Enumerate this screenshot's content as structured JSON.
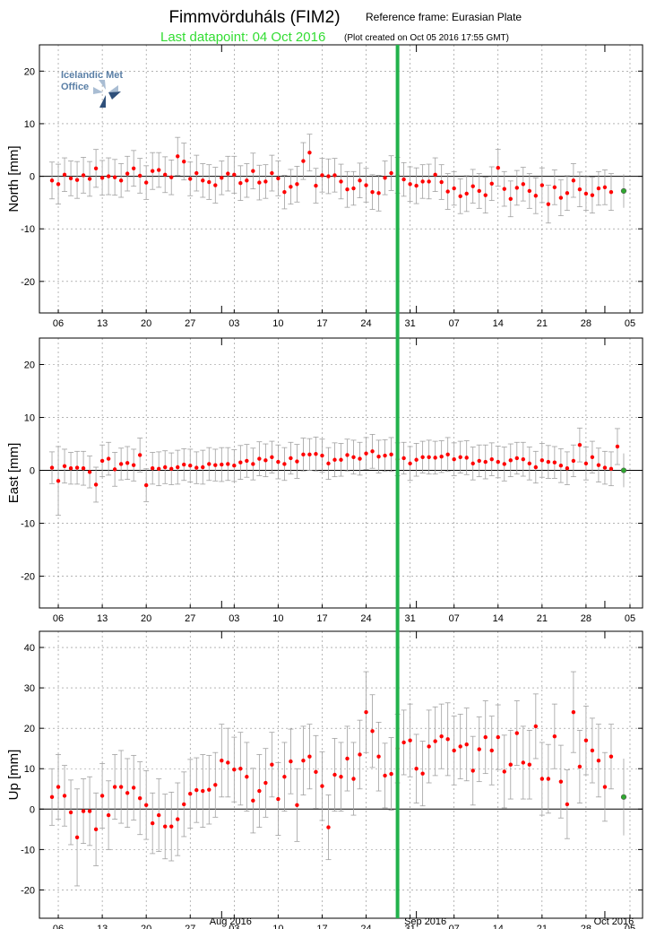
{
  "header": {
    "title": "Fimmvörduháls (FIM2)",
    "reference_frame": "Reference frame: Eurasian Plate",
    "last_datapoint": "Last datapoint: 04 Oct 2016",
    "plot_created": "(Plot created on Oct 05 2016 17:55 GMT)"
  },
  "logo": {
    "line1": "Icelandic Met",
    "line2": "Office"
  },
  "colors": {
    "point": "#ff0000",
    "error_bar": "#a0a0a0",
    "last_point": "#2fa82f",
    "marker_line": "#22b24c",
    "last_datapoint_text": "#33dd33",
    "logo_text": "#5a7fa6",
    "grid": "#888888"
  },
  "chart_data": {
    "type": "scatter",
    "x_unit": "date",
    "x_range": [
      "2016-07-03",
      "2016-10-07"
    ],
    "x_ticks": [
      {
        "date": "2016-07-06",
        "label": "06"
      },
      {
        "date": "2016-07-13",
        "label": "13"
      },
      {
        "date": "2016-07-20",
        "label": "20"
      },
      {
        "date": "2016-07-27",
        "label": "27"
      },
      {
        "date": "2016-08-03",
        "label": "03"
      },
      {
        "date": "2016-08-10",
        "label": "10"
      },
      {
        "date": "2016-08-17",
        "label": "17"
      },
      {
        "date": "2016-08-24",
        "label": "24"
      },
      {
        "date": "2016-08-31",
        "label": "31"
      },
      {
        "date": "2016-09-07",
        "label": "07"
      },
      {
        "date": "2016-09-14",
        "label": "14"
      },
      {
        "date": "2016-09-21",
        "label": "21"
      },
      {
        "date": "2016-09-28",
        "label": "28"
      },
      {
        "date": "2016-10-05",
        "label": "05"
      }
    ],
    "month_labels": [
      {
        "date": "2016-08-01",
        "label": "Aug 2016"
      },
      {
        "date": "2016-09-01",
        "label": "Sep 2016"
      },
      {
        "date": "2016-10-01",
        "label": "Oct 2016"
      }
    ],
    "marker_line_date": "2016-08-29",
    "start_date": "2016-07-05",
    "grid": true,
    "panels": [
      {
        "name": "north",
        "ylabel": "North [mm]",
        "ylim": [
          -26,
          25
        ],
        "yticks": [
          -20,
          -10,
          0,
          10,
          20
        ],
        "values": [
          -0.8,
          -1.5,
          0.3,
          -0.4,
          -0.7,
          0.2,
          -0.5,
          1.5,
          -0.3,
          0,
          -0.2,
          -0.8,
          0.5,
          1.5,
          0.1,
          -1.2,
          1,
          1.2,
          0.3,
          -0.2,
          3.8,
          2.8,
          -0.5,
          0.6,
          -0.8,
          -1.1,
          -1.7,
          -0.3,
          0.5,
          0.3,
          -1.3,
          -0.8,
          1,
          -1.2,
          -1,
          0.6,
          -0.4,
          -3,
          -2,
          -1.5,
          2.9,
          4.5,
          -1.8,
          0.2,
          0,
          0.2,
          -1,
          -2.5,
          -2.3,
          -0.8,
          -1.7,
          -3,
          -3.2,
          -0.3,
          0.6,
          0.2,
          -0.6,
          -1.5,
          -1.8,
          -1,
          -1,
          0.3,
          -1.1,
          -2.9,
          -2.3,
          -3.8,
          -3.3,
          -1.9,
          -2.8,
          -3.6,
          -1.4,
          1.6,
          -2.4,
          -4.3,
          -2.2,
          -1.5,
          -2.8,
          -3.7,
          -1.7,
          -5.3,
          -2.1,
          -4.1,
          -3.2,
          -0.8,
          -2.5,
          -3.3,
          -3.6,
          -2.3,
          -2.1,
          -3
        ],
        "errors": [
          3.5,
          3.8,
          3.2,
          3.3,
          3.5,
          3.4,
          3.3,
          3.6,
          3.3,
          3.5,
          3.4,
          3.2,
          3.3,
          3.4,
          3.3,
          3.2,
          3.5,
          3.3,
          3.4,
          3.3,
          3.6,
          3.5,
          3.2,
          3.4,
          3.2,
          3.3,
          3.4,
          3.2,
          3.3,
          3.5,
          3.3,
          3.2,
          3.4,
          3.3,
          3.2,
          3.4,
          3.3,
          3.2,
          3.3,
          3.4,
          3.5,
          3.5,
          3.3,
          3.2,
          3.3,
          3.2,
          3.3,
          3.4,
          3.2,
          3.3,
          3.2,
          3.3,
          3.4,
          3.2,
          3.3,
          3.4,
          3.2,
          3.3,
          3.4,
          3.2,
          3.3,
          3.2,
          3.3,
          3.4,
          3.2,
          3.3,
          3.4,
          3.2,
          3.3,
          3.4,
          3.2,
          3.5,
          3.3,
          3.4,
          3.3,
          3.2,
          3.3,
          3.4,
          3.3,
          3.6,
          3.3,
          3.4,
          3.3,
          3.2,
          3.3,
          3.2,
          3.4,
          3.2,
          3.3,
          3.5
        ],
        "last_value": -2.8
      },
      {
        "name": "east",
        "ylabel": "East [mm]",
        "ylim": [
          -26,
          25
        ],
        "yticks": [
          -20,
          -10,
          0,
          10,
          20
        ],
        "values": [
          0.5,
          -2,
          0.8,
          0.4,
          0.5,
          0.4,
          -0.3,
          -2.7,
          1.8,
          2.2,
          0.2,
          1.2,
          1.4,
          1,
          2.9,
          -2.8,
          0.4,
          0.3,
          0.6,
          0.3,
          0.6,
          1.1,
          0.9,
          0.5,
          0.6,
          1.2,
          1,
          1.1,
          1.2,
          0.9,
          1.5,
          1.8,
          1.2,
          2.2,
          1.9,
          2.5,
          1.6,
          1.2,
          2.3,
          1.7,
          3,
          3,
          3.1,
          2.8,
          1.3,
          2,
          2,
          2.9,
          2.5,
          2.2,
          3.2,
          3.6,
          2.6,
          2.8,
          3,
          2.1,
          2.3,
          1.3,
          2,
          2.5,
          2.5,
          2.4,
          2.6,
          3,
          2.1,
          2.5,
          2.4,
          1.3,
          1.8,
          1.6,
          2.1,
          1.6,
          1.2,
          1.9,
          2.3,
          2.1,
          1.3,
          0.6,
          1.9,
          1.6,
          1.5,
          0.9,
          0.4,
          1.8,
          4.8,
          1.3,
          2.5,
          1,
          0.5,
          0.3,
          4.5
        ],
        "errors": [
          3,
          6.5,
          3.2,
          3,
          3.1,
          3.2,
          3,
          3.3,
          3,
          3.1,
          3.2,
          3,
          3.1,
          3,
          3.2,
          3.1,
          3,
          3.2,
          3.1,
          3,
          3.2,
          3,
          3.1,
          3,
          3.2,
          3.1,
          3,
          3.2,
          3.1,
          3,
          3.2,
          3.1,
          3,
          3.2,
          3.1,
          3,
          3.2,
          3.1,
          3,
          3.2,
          3.1,
          3,
          3.2,
          3.1,
          3,
          3.2,
          3.1,
          3,
          3.2,
          3.1,
          3,
          3.2,
          3.1,
          3,
          3.2,
          3.1,
          3,
          3.2,
          3.1,
          3,
          3.2,
          3.1,
          3,
          3.2,
          3.1,
          3,
          3.2,
          3.1,
          3,
          3.2,
          3.1,
          3,
          3.2,
          3.1,
          3,
          3.2,
          3.1,
          3,
          3.2,
          3.1,
          3,
          3.2,
          3.1,
          3,
          3.2,
          3.1,
          3,
          3.2,
          3.1,
          3.2,
          3.4
        ],
        "last_value": 0
      },
      {
        "name": "up",
        "ylabel": "Up [mm]",
        "ylim": [
          -27,
          44
        ],
        "yticks": [
          -20,
          -10,
          0,
          10,
          20,
          30,
          40
        ],
        "values": [
          3,
          5.5,
          3.3,
          -0.8,
          -7,
          -0.5,
          -0.5,
          -5,
          3.3,
          -1.5,
          5.5,
          5.5,
          4,
          5.3,
          2.7,
          1,
          -3.5,
          -1.5,
          -4.3,
          -4.3,
          -2.5,
          1.2,
          3.8,
          4.7,
          4.5,
          4.8,
          6,
          12,
          11.5,
          9.8,
          10,
          8,
          2.1,
          4.5,
          6.5,
          11,
          2.5,
          8,
          11.8,
          1,
          12,
          13,
          9.2,
          5.7,
          -4.5,
          8.5,
          8,
          12.5,
          7.5,
          13.5,
          24,
          19.3,
          13,
          8.3,
          8.7,
          15,
          16.5,
          17,
          10,
          8.8,
          15.5,
          16.8,
          18,
          17.3,
          14.5,
          15.5,
          16,
          9.5,
          14.8,
          17.8,
          14.5,
          17.8,
          9.3,
          11,
          18.8,
          11.5,
          11,
          20.5,
          7.5,
          7.5,
          18,
          6.8,
          1.2,
          24,
          10.5,
          17,
          14.5,
          12,
          5.5,
          13
        ],
        "errors": [
          7,
          8,
          7.5,
          8,
          12,
          8,
          8.5,
          9,
          8,
          8.5,
          8,
          9,
          8.5,
          8,
          9,
          8.5,
          7.5,
          9,
          8,
          8.5,
          9,
          8,
          8.5,
          8,
          9,
          8.5,
          8,
          9,
          8.5,
          8,
          9,
          8.5,
          8,
          9,
          8.5,
          8,
          9,
          8.5,
          8,
          9,
          8.5,
          8,
          9,
          8.5,
          8,
          9,
          8.5,
          8,
          9,
          8.5,
          10,
          9,
          8.5,
          8,
          9,
          8.5,
          8,
          9,
          8.5,
          8,
          9,
          8.5,
          8,
          9,
          8.5,
          8,
          9,
          8.5,
          8,
          9,
          8.5,
          8,
          9,
          8.5,
          8,
          9,
          8.5,
          8,
          9,
          8.5,
          8,
          9,
          8.5,
          10,
          9,
          8.5,
          8,
          9,
          8.5,
          8
        ],
        "last_value": 3
      }
    ]
  }
}
